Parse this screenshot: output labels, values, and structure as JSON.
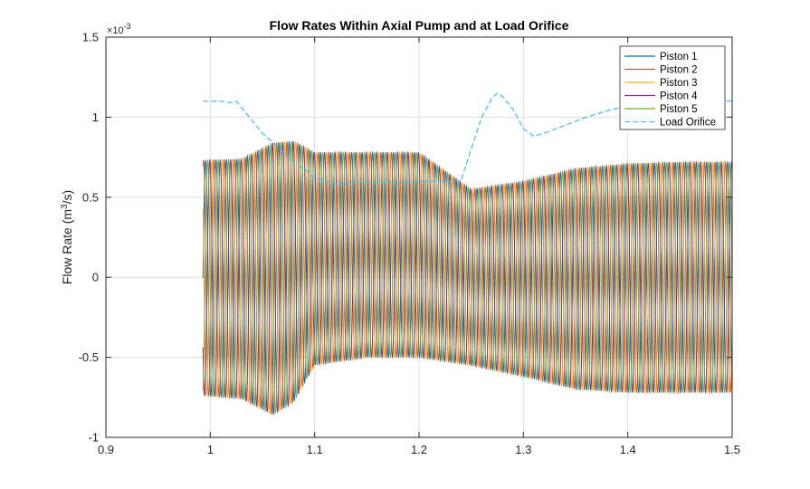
{
  "chart_data": {
    "type": "line",
    "title": "Flow Rates Within Axial Pump and at Load Orifice",
    "xlabel": "",
    "ylabel_main": "Flow  Rate  (m",
    "ylabel_sup": "3",
    "ylabel_tail": "/s)",
    "y_exponent_base": "×10",
    "y_exponent_power": "-3",
    "xlim": [
      0.9,
      1.5
    ],
    "ylim": [
      -1,
      1.5
    ],
    "xticks": [
      0.9,
      1.0,
      1.1,
      1.2,
      1.3,
      1.4,
      1.5
    ],
    "xtick_labels": [
      "0.9",
      "1",
      "1.1",
      "1.2",
      "1.3",
      "1.4",
      "1.5"
    ],
    "yticks": [
      -1,
      -0.5,
      0,
      0.5,
      1,
      1.5
    ],
    "ytick_labels": [
      "-1",
      "-0.5",
      "0",
      "0.5",
      "1",
      "1.5"
    ],
    "grid": true,
    "legend_position": "top-right",
    "oscillation_start_x": 0.993,
    "period": 0.01,
    "series": [
      {
        "name": "Piston 1",
        "color": "#0072BD",
        "style": "solid",
        "phase_fraction": 0.0
      },
      {
        "name": "Piston 2",
        "color": "#D95319",
        "style": "solid",
        "phase_fraction": 0.2
      },
      {
        "name": "Piston 3",
        "color": "#EDB120",
        "style": "solid",
        "phase_fraction": 0.4
      },
      {
        "name": "Piston 4",
        "color": "#7E2F8E",
        "style": "solid",
        "phase_fraction": 0.6
      },
      {
        "name": "Piston 5",
        "color": "#77AC30",
        "style": "solid",
        "phase_fraction": 0.8
      },
      {
        "name": "Load Orifice",
        "color": "#4DBEEE",
        "style": "dashed"
      }
    ],
    "amplitude_envelope": {
      "x": [
        0.993,
        1.03,
        1.06,
        1.08,
        1.1,
        1.15,
        1.2,
        1.25,
        1.3,
        1.35,
        1.4,
        1.45,
        1.5
      ],
      "upper": [
        0.73,
        0.74,
        0.84,
        0.85,
        0.78,
        0.78,
        0.78,
        0.55,
        0.6,
        0.68,
        0.71,
        0.72,
        0.72
      ],
      "lower": [
        -0.74,
        -0.76,
        -0.86,
        -0.78,
        -0.55,
        -0.5,
        -0.5,
        -0.55,
        -0.62,
        -0.7,
        -0.72,
        -0.72,
        -0.72
      ]
    },
    "load_orifice": {
      "x": [
        0.993,
        1.0,
        1.01,
        1.02,
        1.025,
        1.03,
        1.04,
        1.05,
        1.06,
        1.07,
        1.08,
        1.09,
        1.1,
        1.12,
        1.14,
        1.16,
        1.2,
        1.24,
        1.25,
        1.26,
        1.27,
        1.275,
        1.28,
        1.29,
        1.3,
        1.31,
        1.32,
        1.34,
        1.36,
        1.38,
        1.4,
        1.42,
        1.44,
        1.46,
        1.48,
        1.5
      ],
      "y": [
        1.1,
        1.1,
        1.1,
        1.09,
        1.1,
        1.06,
        0.98,
        0.9,
        0.84,
        0.78,
        0.72,
        0.68,
        0.62,
        0.58,
        0.6,
        0.59,
        0.6,
        0.6,
        0.8,
        1.0,
        1.12,
        1.15,
        1.13,
        1.05,
        0.93,
        0.88,
        0.9,
        0.95,
        1.0,
        1.04,
        1.07,
        1.1,
        1.11,
        1.12,
        1.11,
        1.1
      ]
    }
  }
}
